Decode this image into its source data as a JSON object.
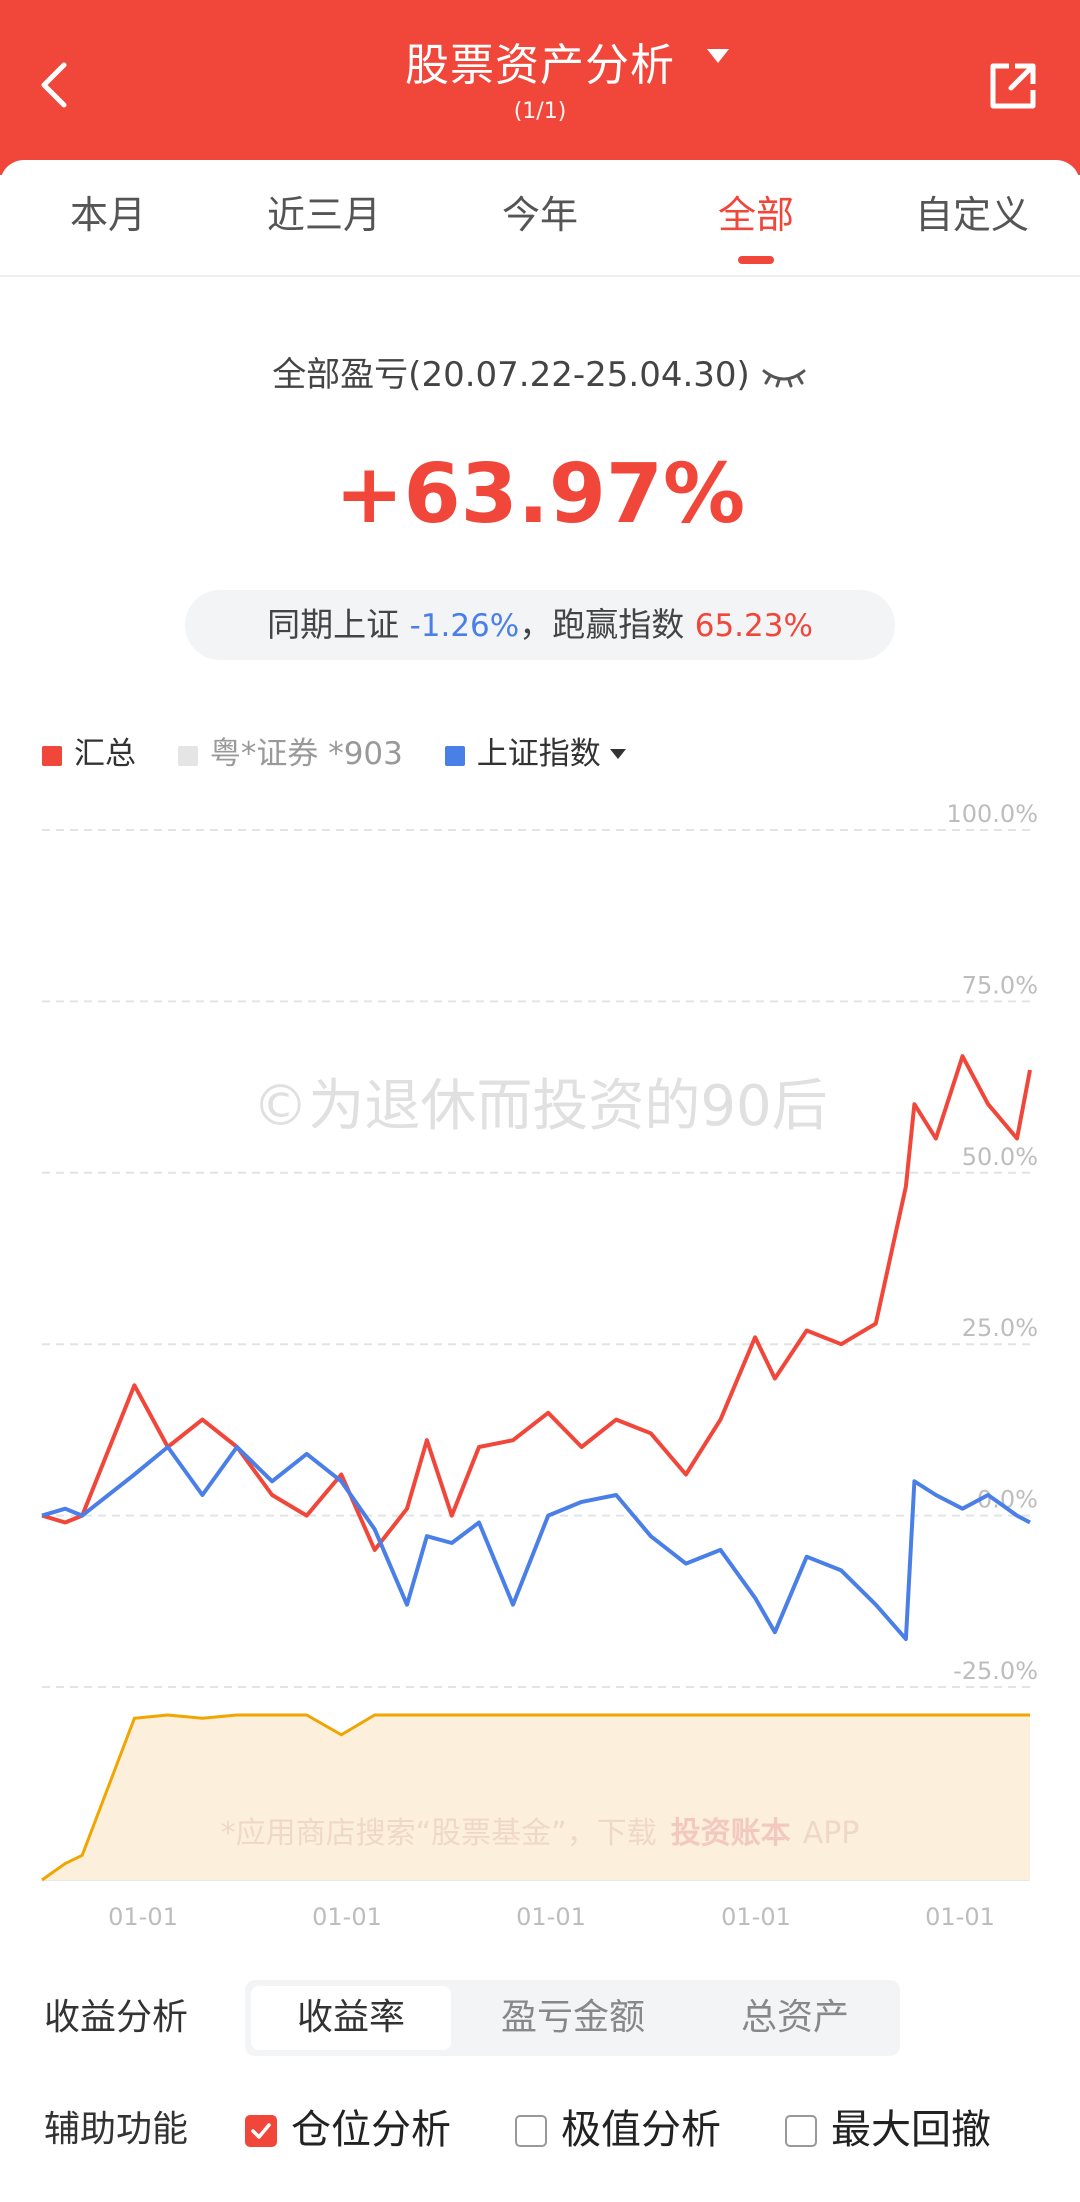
{
  "header": {
    "title": "股票资产分析",
    "subtitle": "(1/1)",
    "bg_color": "#f0473a",
    "back_icon": "chevron-left-icon",
    "share_icon": "share-export-icon"
  },
  "tabs": [
    {
      "label": "本月",
      "active": false
    },
    {
      "label": "近三月",
      "active": false
    },
    {
      "label": "今年",
      "active": false
    },
    {
      "label": "全部",
      "active": true
    },
    {
      "label": "自定义",
      "active": false
    }
  ],
  "summary": {
    "period_label": "全部盈亏(20.07.22-25.04.30)",
    "total_return": "+63.97%",
    "compare_prefix": "同期上证",
    "index_return": "-1.26%",
    "beat_label": "，跑赢指数",
    "beat_value": "65.23%"
  },
  "legend": [
    {
      "label": "汇总",
      "color": "#f0473a"
    },
    {
      "label": "粤*证券 *903",
      "color": "#e5e5e5"
    },
    {
      "label": "上证指数",
      "color": "#4a7fe8"
    }
  ],
  "watermarks": {
    "main": "©为退休而投资的90后",
    "bottom_prefix": "*应用商店搜索“股票基金”，下载",
    "bottom_brand": "投资账本",
    "bottom_suffix": "APP"
  },
  "chart_data": {
    "type": "line",
    "y_ticks": [
      "100.0%",
      "75.0%",
      "50.0%",
      "25.0%",
      "0.0%",
      "-25.0%"
    ],
    "ylim": [
      -25,
      100
    ],
    "x_ticks": [
      "01-01",
      "01-01",
      "01-01",
      "01-01",
      "01-01"
    ],
    "x": [
      "2020-07-22",
      "2020-09-01",
      "2020-10-01",
      "2021-01-01",
      "2021-03-01",
      "2021-05-01",
      "2021-07-01",
      "2021-09-01",
      "2021-11-01",
      "2022-01-01",
      "2022-03-01",
      "2022-04-27",
      "2022-06-01",
      "2022-07-15",
      "2022-09-01",
      "2022-10-31",
      "2023-01-01",
      "2023-03-01",
      "2023-05-01",
      "2023-07-01",
      "2023-09-01",
      "2023-11-01",
      "2024-01-01",
      "2024-02-05",
      "2024-04-01",
      "2024-06-01",
      "2024-08-01",
      "2024-09-23",
      "2024-10-08",
      "2024-11-15",
      "2025-01-01",
      "2025-02-15",
      "2025-04-07",
      "2025-04-30"
    ],
    "series": [
      {
        "name": "汇总",
        "color": "#f0473a",
        "values": [
          0,
          -1,
          0,
          19,
          10,
          14,
          10,
          3,
          0,
          6,
          -5,
          1,
          11,
          0,
          10,
          11,
          15,
          10,
          14,
          12,
          6,
          14,
          26,
          20,
          27,
          25,
          28,
          48,
          60,
          55,
          67,
          60,
          55,
          65
        ]
      },
      {
        "name": "上证指数",
        "color": "#4a7fe8",
        "values": [
          0,
          1,
          0,
          6,
          10,
          3,
          10,
          5,
          9,
          5,
          -2,
          -13,
          -3,
          -4,
          -1,
          -13,
          0,
          2,
          3,
          -3,
          -7,
          -5,
          -12,
          -17,
          -6,
          -8,
          -13,
          -18,
          5,
          3,
          1,
          3,
          0,
          -1
        ]
      }
    ],
    "position_area": {
      "name": "仓位",
      "color": "#f0a500",
      "fill": "#fcefdc",
      "values": [
        0,
        0.1,
        0.15,
        0.98,
        1,
        0.98,
        1,
        1,
        1,
        0.88,
        1,
        1,
        1,
        1,
        1,
        1,
        1,
        1,
        1,
        1,
        1,
        1,
        1,
        1,
        1,
        1,
        1,
        1,
        1,
        1,
        1,
        1,
        1,
        1
      ]
    }
  },
  "analysis": {
    "label": "收益分析",
    "options": [
      {
        "label": "收益率",
        "active": true
      },
      {
        "label": "盈亏金额",
        "active": false
      },
      {
        "label": "总资产",
        "active": false
      }
    ]
  },
  "aux": {
    "label": "辅助功能",
    "options": [
      {
        "label": "仓位分析",
        "checked": true
      },
      {
        "label": "极值分析",
        "checked": false
      },
      {
        "label": "最大回撤",
        "checked": false
      }
    ]
  }
}
